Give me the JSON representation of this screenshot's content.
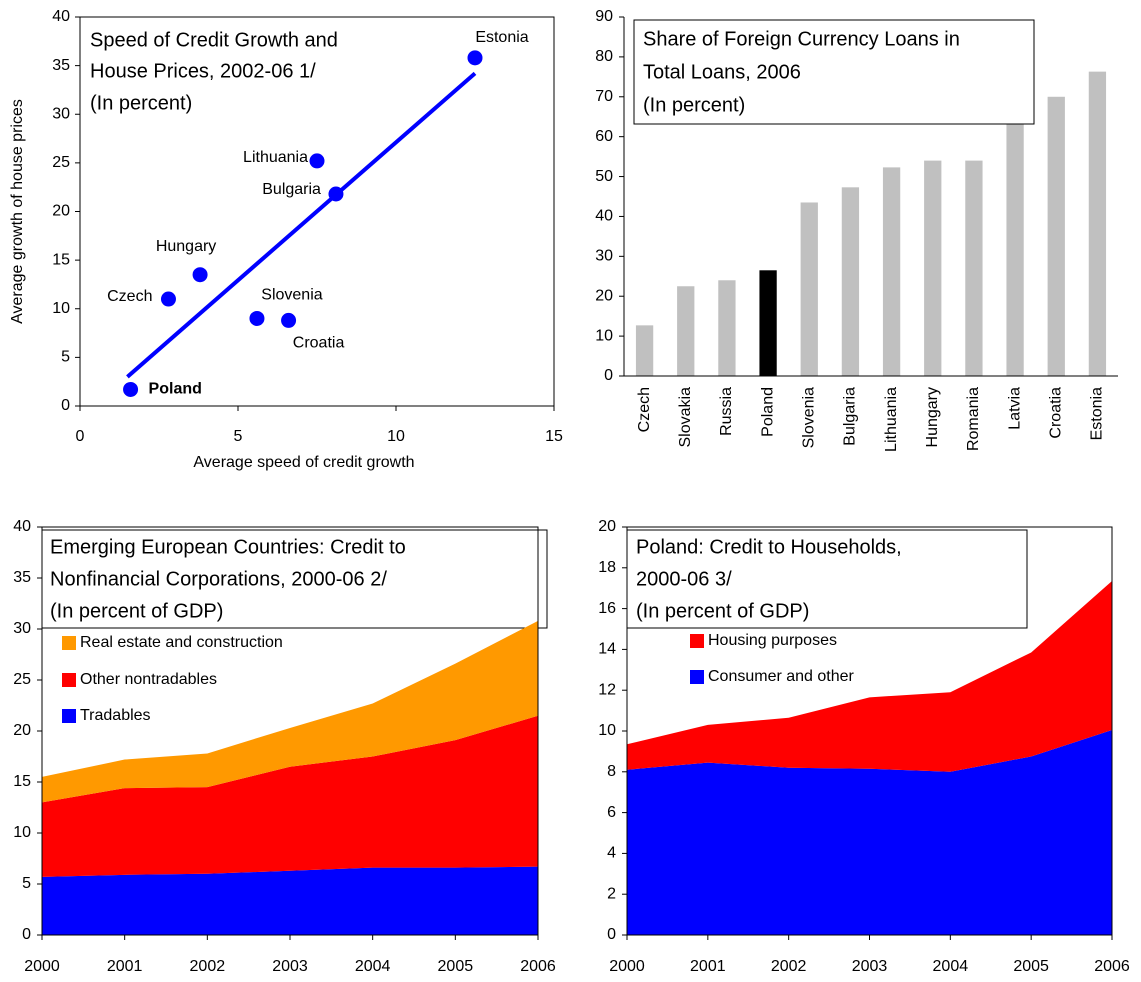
{
  "chart_data": [
    {
      "type": "scatter",
      "title": [
        "Speed of Credit Growth and",
        "House Prices, 2002-06 1/",
        "(In percent)"
      ],
      "x_label": "Average speed of credit growth",
      "y_label": "Average growth of house prices",
      "labels": [
        "Estonia",
        "Lithuania",
        "Bulgaria",
        "Hungary",
        "Czech",
        "Slovenia",
        "Croatia",
        "Poland"
      ],
      "x": [
        12.5,
        7.5,
        8.1,
        3.8,
        2.8,
        5.6,
        6.6,
        1.6
      ],
      "values": [
        35.8,
        25.2,
        21.8,
        13.5,
        11,
        9,
        8.8,
        1.7
      ],
      "color": "#0000ff",
      "trend": {
        "x": [
          1.5,
          12.5
        ],
        "values": [
          3,
          34.2
        ]
      },
      "xlim": [
        0,
        15
      ],
      "xticks": [
        0,
        5,
        10,
        15
      ],
      "ylim": [
        0,
        40
      ],
      "yticks": [
        0,
        5,
        10,
        15,
        20,
        25,
        30,
        35,
        40
      ]
    },
    {
      "type": "bar",
      "title": [
        "Share of Foreign Currency Loans in",
        "Total Loans, 2006",
        "(In percent)"
      ],
      "categories": [
        "Czech",
        "Slovakia",
        "Russia",
        "Poland",
        "Slovenia",
        "Bulgaria",
        "Lithuania",
        "Hungary",
        "Romania",
        "Latvia",
        "Croatia",
        "Estonia"
      ],
      "values": [
        12.7,
        22.5,
        24,
        26.5,
        43.5,
        47.3,
        52.3,
        54,
        54,
        70,
        70,
        76.3
      ],
      "colors": [
        "#c0c0c0",
        "#c0c0c0",
        "#c0c0c0",
        "#000000",
        "#c0c0c0",
        "#c0c0c0",
        "#c0c0c0",
        "#c0c0c0",
        "#c0c0c0",
        "#c0c0c0",
        "#c0c0c0",
        "#c0c0c0"
      ],
      "ylim": [
        0,
        90
      ],
      "yticks": [
        0,
        10,
        20,
        30,
        40,
        50,
        60,
        70,
        80,
        90
      ]
    },
    {
      "type": "area",
      "title": [
        "Emerging European Countries: Credit to",
        "Nonfinancial Corporations, 2000-06 2/",
        "(In percent of GDP)"
      ],
      "categories": [
        "2000",
        "2001",
        "2002",
        "2003",
        "2004",
        "2005",
        "2006"
      ],
      "series": [
        {
          "name": "Tradables",
          "color": "#0000ff",
          "values": [
            5.7,
            5.9,
            6.0,
            6.3,
            6.6,
            6.6,
            6.7
          ]
        },
        {
          "name": "Other nontradables",
          "color": "#ff0000",
          "values": [
            7.3,
            8.5,
            8.5,
            10.2,
            10.9,
            12.5,
            14.8
          ]
        },
        {
          "name": "Real estate and construction",
          "color": "#ff9900",
          "values": [
            2.5,
            2.8,
            3.3,
            3.8,
            5.2,
            7.5,
            9.3
          ]
        }
      ],
      "ylim": [
        0,
        40
      ],
      "yticks": [
        0,
        5,
        10,
        15,
        20,
        25,
        30,
        35,
        40
      ]
    },
    {
      "type": "area",
      "title": [
        "Poland: Credit to Households,",
        "2000-06 3/",
        "(In percent of GDP)"
      ],
      "categories": [
        "2000",
        "2001",
        "2002",
        "2003",
        "2004",
        "2005",
        "2006"
      ],
      "series": [
        {
          "name": "Consumer and other",
          "color": "#0000ff",
          "values": [
            8.1,
            8.45,
            8.2,
            8.15,
            8.0,
            8.75,
            10.05
          ]
        },
        {
          "name": "Housing purposes",
          "color": "#ff0000",
          "values": [
            1.25,
            1.85,
            2.45,
            3.5,
            3.9,
            5.1,
            7.3
          ]
        }
      ],
      "ylim": [
        0,
        20
      ],
      "yticks": [
        0,
        2,
        4,
        6,
        8,
        10,
        12,
        14,
        16,
        18,
        20
      ]
    }
  ]
}
